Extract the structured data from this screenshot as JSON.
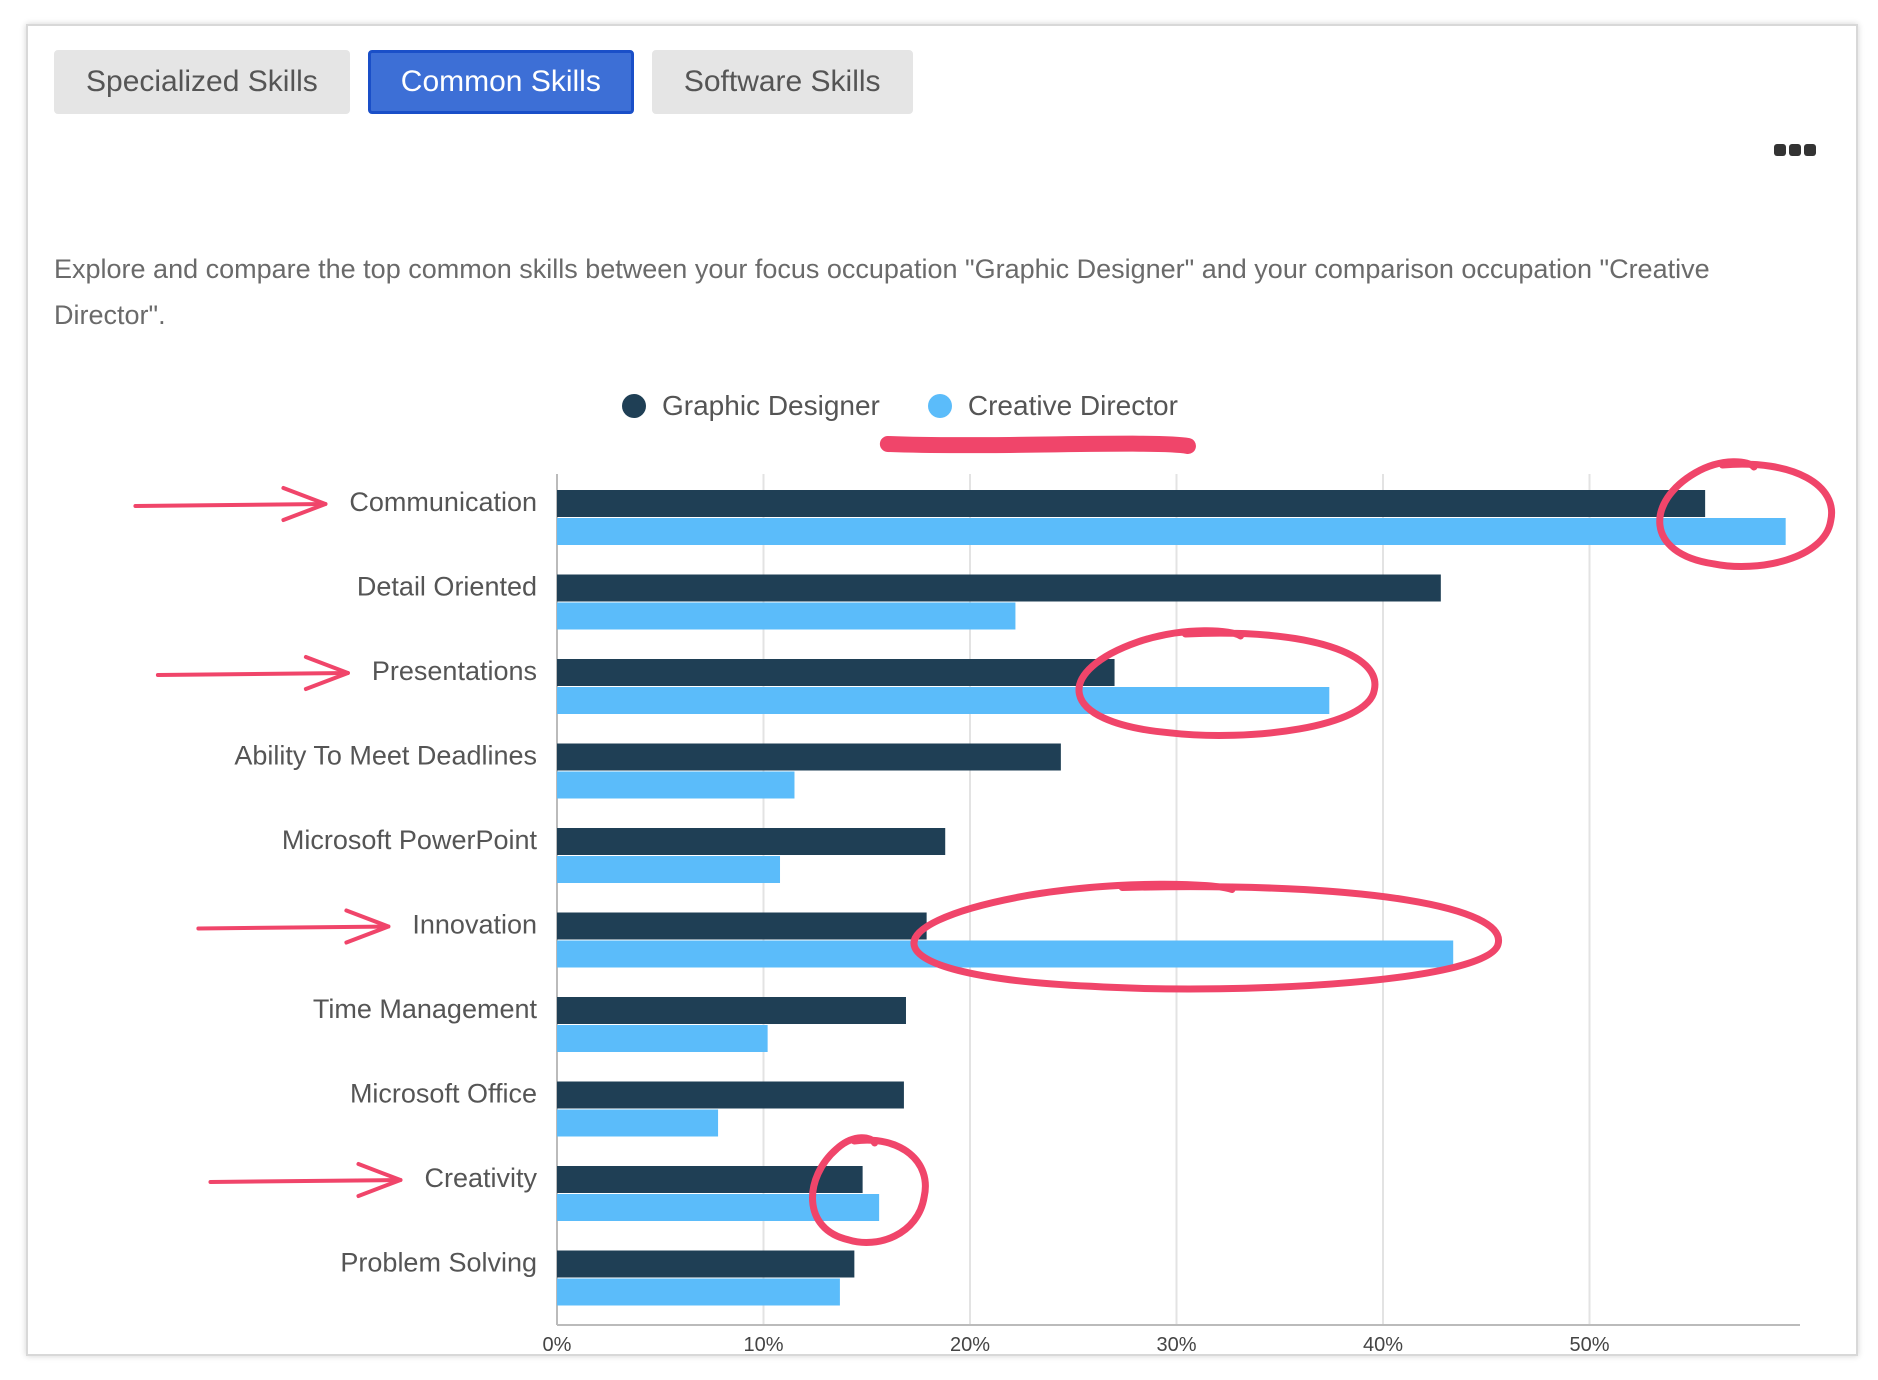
{
  "tabs": [
    {
      "label": "Specialized Skills",
      "active": false
    },
    {
      "label": "Common Skills",
      "active": true
    },
    {
      "label": "Software Skills",
      "active": false
    }
  ],
  "more_menu_icon": "ellipsis-icon",
  "description": "Explore and compare the top common skills between your focus occupation \"Graphic Designer\" and your comparison occupation \"Creative Director\".",
  "colors": {
    "tab_active": "#3d6fd6",
    "graphic_designer": "#1f3f55",
    "creative_director": "#5bbcfa",
    "annotation": "#f0456a"
  },
  "chart_data": {
    "type": "bar",
    "orientation": "horizontal",
    "categories": [
      "Communication",
      "Detail Oriented",
      "Presentations",
      "Ability To Meet Deadlines",
      "Microsoft PowerPoint",
      "Innovation",
      "Time Management",
      "Microsoft Office",
      "Creativity",
      "Problem Solving"
    ],
    "series": [
      {
        "name": "Graphic Designer",
        "color": "#1f3f55",
        "values": [
          55.6,
          42.8,
          27.0,
          24.4,
          18.8,
          17.9,
          16.9,
          16.8,
          14.8,
          14.4
        ]
      },
      {
        "name": "Creative Director",
        "color": "#5bbcfa",
        "values": [
          59.5,
          22.2,
          37.4,
          11.5,
          10.8,
          43.4,
          10.2,
          7.8,
          15.6,
          13.7
        ]
      }
    ],
    "xlim": [
      0,
      60
    ],
    "xticks": [
      "0%",
      "10%",
      "20%",
      "30%",
      "40%",
      "50%"
    ],
    "grid": true,
    "legend_position": "top"
  },
  "annotations": {
    "arrow_rows": [
      "Communication",
      "Presentations",
      "Innovation",
      "Creativity"
    ],
    "circled_rows": [
      "Communication",
      "Presentations",
      "Innovation",
      "Creativity"
    ],
    "underlined_legend": "Creative Director"
  }
}
